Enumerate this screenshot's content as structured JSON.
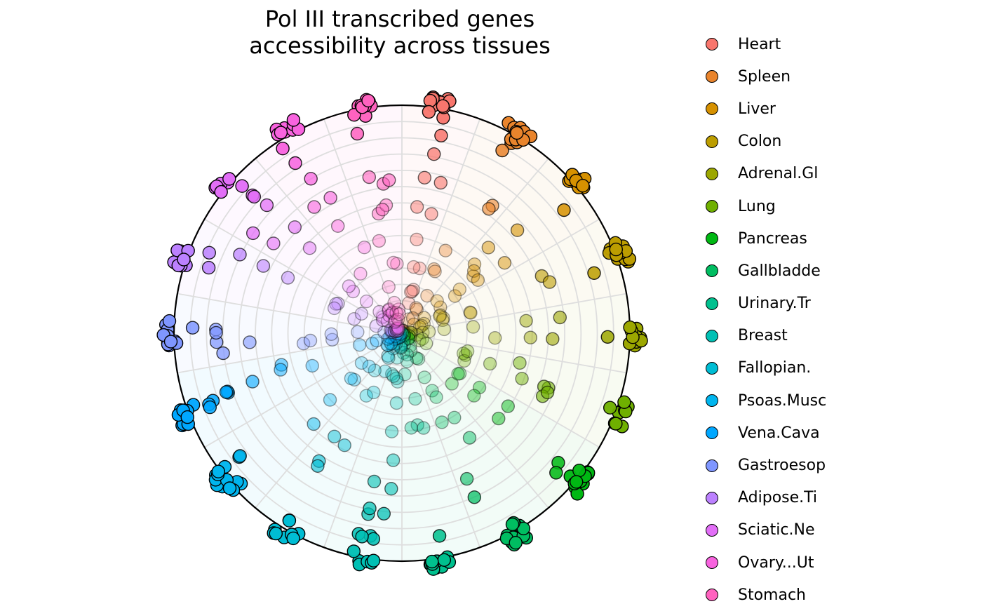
{
  "chart_data": {
    "type": "scatter",
    "subtype": "polar-radar",
    "title": "Pol III transcribed genes\naccessibility across tissues",
    "grid": true,
    "legend_position": "right",
    "series": [
      {
        "name": "Heart",
        "color": "#F8766D"
      },
      {
        "name": "Spleen",
        "color": "#E9842C"
      },
      {
        "name": "Liver",
        "color": "#D69100"
      },
      {
        "name": "Colon",
        "color": "#BC9D00"
      },
      {
        "name": "Adrenal.Gl",
        "color": "#9CA700"
      },
      {
        "name": "Lung",
        "color": "#6FB000"
      },
      {
        "name": "Pancreas",
        "color": "#00B813"
      },
      {
        "name": "Gallbladde",
        "color": "#00BD61"
      },
      {
        "name": "Urinary.Tr",
        "color": "#00C08E"
      },
      {
        "name": "Breast",
        "color": "#00C0B4"
      },
      {
        "name": "Fallopian.",
        "color": "#00BDD4"
      },
      {
        "name": "Psoas.Musc",
        "color": "#00B5EE"
      },
      {
        "name": "Vena.Cava",
        "color": "#00A7FF"
      },
      {
        "name": "Gastroesop",
        "color": "#7F96FF"
      },
      {
        "name": "Adipose.Ti",
        "color": "#BC81FF"
      },
      {
        "name": "Sciatic.Ne",
        "color": "#E26EF7"
      },
      {
        "name": "Ovary...Ut",
        "color": "#F863DF"
      },
      {
        "name": "Stomach",
        "color": "#FF62BF"
      }
    ]
  }
}
